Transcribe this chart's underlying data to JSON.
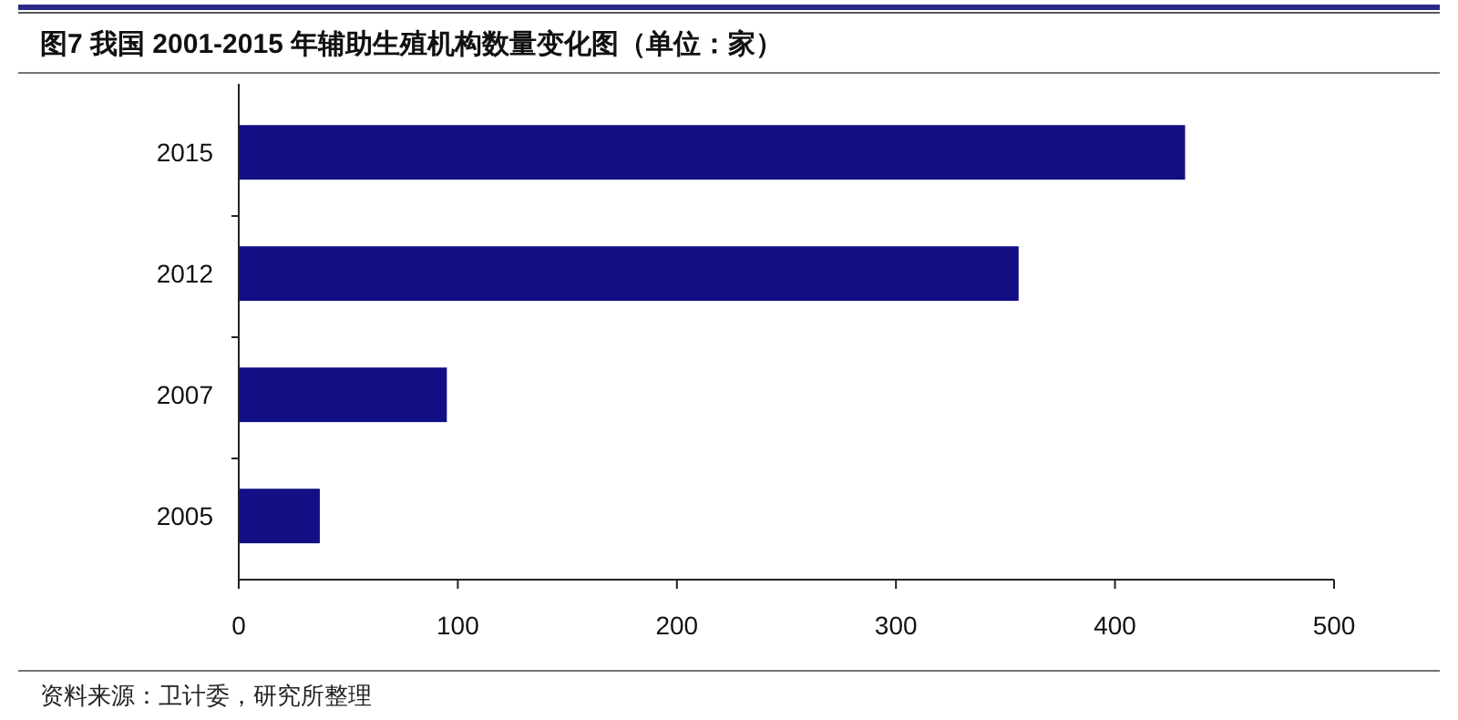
{
  "chart_data": {
    "type": "bar",
    "orientation": "horizontal",
    "title": "图7  我国 2001-2015 年辅助生殖机构数量变化图（单位：家）",
    "categories": [
      "2015",
      "2012",
      "2007",
      "2005"
    ],
    "values": [
      432,
      356,
      95,
      37
    ],
    "color": "#120f85",
    "xlim": [
      0,
      500
    ],
    "xticks": [
      0,
      100,
      200,
      300,
      400,
      500
    ],
    "grid": false,
    "annotations": [
      "资料来源：卫计委，研究所整理"
    ]
  }
}
